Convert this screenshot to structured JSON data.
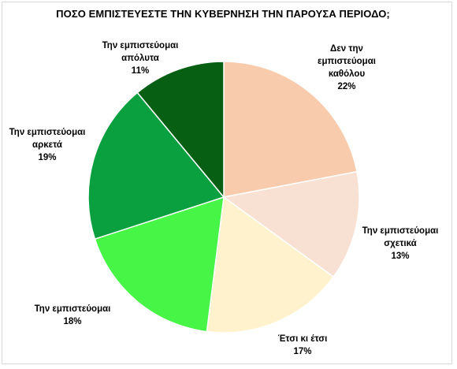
{
  "chart_data": {
    "type": "pie",
    "title": "ΠΟΣΟ ΕΜΠΙΣΤΕΥΕΣΤΕ ΤΗΝ ΚΥΒΕΡΝΗΣΗ ΤΗΝ ΠΑΡΟΥΣΑ ΠΕΡΙΟΔΟ;",
    "slices": [
      {
        "label": [
          "Δεν την",
          "εμπιστεύομαι",
          "καθόλου"
        ],
        "value": 22,
        "pct_label": "22%",
        "color": "#f8cbad"
      },
      {
        "label": [
          "Την εμπιστεύομαι",
          "σχετικά"
        ],
        "value": 13,
        "pct_label": "13%",
        "color": "#f8e0d2"
      },
      {
        "label": [
          "Έτσι κι έτσι"
        ],
        "value": 17,
        "pct_label": "17%",
        "color": "#fff2cc"
      },
      {
        "label": [
          "Την εμπιστεύομαι"
        ],
        "value": 18,
        "pct_label": "18%",
        "color": "#47f547"
      },
      {
        "label": [
          "Την εμπιστεύομαι",
          "αρκετά"
        ],
        "value": 19,
        "pct_label": "19%",
        "color": "#0aa040"
      },
      {
        "label": [
          "Την εμπιστεύομαι",
          "απόλυτα"
        ],
        "value": 11,
        "pct_label": "11%",
        "color": "#065f13"
      }
    ],
    "start_angle_deg": 0,
    "direction": "clockwise",
    "legend": "none"
  }
}
